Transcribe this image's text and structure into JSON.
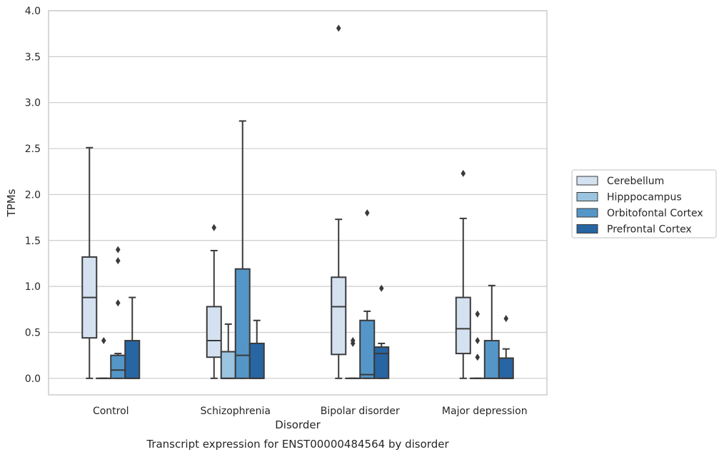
{
  "chart_data": {
    "type": "box",
    "xlabel": "Disorder",
    "ylabel": "TPMs",
    "caption": "Transcript expression for ENST00000484564 by disorder",
    "ylim": [
      -0.18,
      4.0
    ],
    "yticks": [
      "0.0",
      "0.5",
      "1.0",
      "1.5",
      "2.0",
      "2.5",
      "3.0",
      "3.5",
      "4.0"
    ],
    "grid": "horizontal",
    "legend_position": "right",
    "categories": [
      "Control",
      "Schizophrenia",
      "Bipolar disorder",
      "Major depression"
    ],
    "series": [
      {
        "name": "Cerebellum",
        "color": "#d4e1f1",
        "boxes": [
          {
            "q1": 0.44,
            "median": 0.88,
            "q3": 1.32,
            "whisker_low": 0.0,
            "whisker_high": 2.51,
            "outliers": []
          },
          {
            "q1": 0.23,
            "median": 0.41,
            "q3": 0.78,
            "whisker_low": 0.0,
            "whisker_high": 1.39,
            "outliers": [
              1.64
            ]
          },
          {
            "q1": 0.26,
            "median": 0.78,
            "q3": 1.1,
            "whisker_low": 0.0,
            "whisker_high": 1.73,
            "outliers": [
              3.81
            ]
          },
          {
            "q1": 0.27,
            "median": 0.54,
            "q3": 0.88,
            "whisker_low": 0.0,
            "whisker_high": 1.74,
            "outliers": [
              2.23
            ]
          }
        ]
      },
      {
        "name": "Hipppocampus",
        "color": "#9ac4df",
        "boxes": [
          {
            "q1": 0.0,
            "median": 0.0,
            "q3": 0.0,
            "whisker_low": 0.0,
            "whisker_high": 0.0,
            "outliers": [
              0.41
            ]
          },
          {
            "q1": 0.0,
            "median": 0.0,
            "q3": 0.29,
            "whisker_low": 0.0,
            "whisker_high": 0.59,
            "outliers": []
          },
          {
            "q1": 0.0,
            "median": 0.0,
            "q3": 0.0,
            "whisker_low": 0.0,
            "whisker_high": 0.0,
            "outliers": [
              0.38,
              0.41
            ]
          },
          {
            "q1": 0.0,
            "median": 0.0,
            "q3": 0.0,
            "whisker_low": 0.0,
            "whisker_high": 0.0,
            "outliers": [
              0.23,
              0.41,
              0.7
            ]
          }
        ]
      },
      {
        "name": "Orbitofontal Cortex",
        "color": "#5596c8",
        "boxes": [
          {
            "q1": 0.0,
            "median": 0.09,
            "q3": 0.25,
            "whisker_low": 0.0,
            "whisker_high": 0.27,
            "outliers": [
              0.82,
              1.28,
              1.4
            ]
          },
          {
            "q1": 0.0,
            "median": 0.25,
            "q3": 1.19,
            "whisker_low": 0.0,
            "whisker_high": 2.8,
            "outliers": []
          },
          {
            "q1": 0.0,
            "median": 0.04,
            "q3": 0.63,
            "whisker_low": 0.0,
            "whisker_high": 0.73,
            "outliers": [
              1.8
            ]
          },
          {
            "q1": 0.0,
            "median": 0.0,
            "q3": 0.41,
            "whisker_low": 0.0,
            "whisker_high": 1.01,
            "outliers": []
          }
        ]
      },
      {
        "name": "Prefrontal Cortex",
        "color": "#2865a3",
        "boxes": [
          {
            "q1": 0.0,
            "median": 0.0,
            "q3": 0.41,
            "whisker_low": 0.0,
            "whisker_high": 0.88,
            "outliers": []
          },
          {
            "q1": 0.0,
            "median": 0.0,
            "q3": 0.38,
            "whisker_low": 0.0,
            "whisker_high": 0.63,
            "outliers": []
          },
          {
            "q1": 0.0,
            "median": 0.27,
            "q3": 0.34,
            "whisker_low": 0.0,
            "whisker_high": 0.38,
            "outliers": [
              0.98
            ]
          },
          {
            "q1": 0.0,
            "median": 0.0,
            "q3": 0.22,
            "whisker_low": 0.0,
            "whisker_high": 0.32,
            "outliers": [
              0.65
            ]
          }
        ]
      }
    ]
  }
}
